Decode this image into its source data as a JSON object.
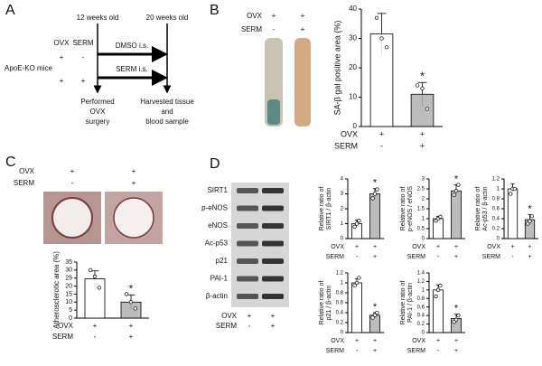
{
  "panel_a": {
    "letter": "A",
    "age_start": "12 weeks old",
    "age_end": "20 weeks old",
    "columns": [
      "OVX",
      "SERM"
    ],
    "group": "ApoE-KO mice",
    "rows": [
      [
        "+",
        "-"
      ],
      [
        "+",
        "+"
      ]
    ],
    "treatments": [
      "DMSO i.s.",
      "SERM i.s."
    ],
    "start_event": [
      "Performed",
      "OVX",
      "surgery"
    ],
    "end_event": [
      "Harvested tissue",
      "and",
      "blood sample"
    ]
  },
  "panel_b": {
    "letter": "B",
    "image_rows": [
      {
        "label": "OVX",
        "marks": [
          "+",
          "+"
        ]
      },
      {
        "label": "SERM",
        "marks": [
          "-",
          "+"
        ]
      }
    ]
  },
  "panel_c": {
    "letter": "C",
    "image_rows": [
      {
        "label": "OVX",
        "marks": [
          "+",
          "+"
        ]
      },
      {
        "label": "SERM",
        "marks": [
          "-",
          "+"
        ]
      }
    ]
  },
  "panel_d": {
    "letter": "D",
    "blot_labels": [
      "SIRT1",
      "p-eNOS",
      "eNOS",
      "Ac-p53",
      "p21",
      "PAI-1",
      "β-actin"
    ],
    "blot_rows": [
      {
        "label": "OVX",
        "marks": [
          "+",
          "+"
        ]
      },
      {
        "label": "SERM",
        "marks": [
          "-",
          "+"
        ]
      }
    ]
  },
  "chart_data": [
    {
      "type": "bar",
      "ylabel": [
        "SA-β gal positive area (%)"
      ],
      "values": [
        31.5,
        11
      ],
      "errors": [
        7,
        4
      ],
      "points": [
        [
          37,
          30,
          27
        ],
        [
          14,
          13,
          6
        ]
      ],
      "colors": [
        "#ffffff",
        "#b0b0b0"
      ],
      "significance": [
        null,
        "*"
      ],
      "ylim": [
        0,
        40
      ],
      "yticks": [
        0,
        10,
        20,
        30,
        40
      ],
      "rows": [
        {
          "label": "OVX",
          "marks": [
            "+",
            "+"
          ]
        },
        {
          "label": "SERM",
          "marks": [
            "-",
            "+"
          ]
        }
      ]
    },
    {
      "type": "bar",
      "ylabel": [
        "Atherosclerotic area (%)"
      ],
      "values": [
        24.5,
        10
      ],
      "errors": [
        5,
        4.5
      ],
      "points": [
        [
          30,
          26,
          19
        ],
        [
          15,
          10,
          6
        ]
      ],
      "colors": [
        "#ffffff",
        "#b0b0b0"
      ],
      "significance": [
        null,
        "*"
      ],
      "ylim": [
        0,
        35
      ],
      "yticks": [
        0,
        5,
        10,
        15,
        20,
        25,
        30,
        35
      ],
      "rows": [
        {
          "label": "OVX",
          "marks": [
            "+",
            "+"
          ]
        },
        {
          "label": "SERM",
          "marks": [
            "-",
            "+"
          ]
        }
      ]
    },
    {
      "type": "bar",
      "ylabel": [
        "Relative ratio of",
        "SIRT1 / β-actin"
      ],
      "values": [
        1.0,
        3.0
      ],
      "errors": [
        0.25,
        0.35
      ],
      "points": [
        [
          0.8,
          1.0,
          1.2
        ],
        [
          2.7,
          3.0,
          3.3
        ]
      ],
      "colors": [
        "#ffffff",
        "#b0b0b0"
      ],
      "significance": [
        null,
        "*"
      ],
      "ylim": [
        0,
        4
      ],
      "yticks": [
        0,
        1,
        2,
        3,
        4
      ],
      "rows": [
        {
          "label": "OVX",
          "marks": [
            "+",
            "+"
          ]
        },
        {
          "label": "SERM",
          "marks": [
            "-",
            "+"
          ]
        }
      ]
    },
    {
      "type": "bar",
      "ylabel": [
        "Relative ratio of",
        "p-eNOS / eNOS"
      ],
      "values": [
        1.0,
        2.4
      ],
      "errors": [
        0.12,
        0.3
      ],
      "points": [
        [
          0.9,
          1.0,
          1.1
        ],
        [
          2.2,
          2.4,
          2.7
        ]
      ],
      "colors": [
        "#ffffff",
        "#b0b0b0"
      ],
      "significance": [
        null,
        "*"
      ],
      "ylim": [
        0,
        3
      ],
      "yticks": [
        0,
        0.5,
        1,
        1.5,
        2,
        2.5,
        3
      ],
      "rows": [
        {
          "label": "OVX",
          "marks": [
            "+",
            "+"
          ]
        },
        {
          "label": "SERM",
          "marks": [
            "-",
            "+"
          ]
        }
      ]
    },
    {
      "type": "bar",
      "ylabel": [
        "Relative ratio of",
        "Ac-p53 / β-actin"
      ],
      "values": [
        1.0,
        0.38
      ],
      "errors": [
        0.1,
        0.1
      ],
      "points": [
        [
          0.9,
          1.0,
          1.0
        ],
        [
          0.3,
          0.35,
          0.45
        ]
      ],
      "colors": [
        "#ffffff",
        "#b0b0b0"
      ],
      "significance": [
        null,
        "*"
      ],
      "ylim": [
        0,
        1.2
      ],
      "yticks": [
        0,
        0.2,
        0.4,
        0.6,
        0.8,
        1,
        1.2
      ],
      "rows": [
        {
          "label": "OVX",
          "marks": [
            "+",
            "+"
          ]
        },
        {
          "label": "SERM",
          "marks": [
            "-",
            "+"
          ]
        }
      ]
    },
    {
      "type": "bar",
      "ylabel": [
        "Relative ratio of",
        "p21 / β-actin"
      ],
      "values": [
        1.0,
        0.35
      ],
      "errors": [
        0.08,
        0.05
      ],
      "points": [
        [
          0.95,
          1.0,
          1.1
        ],
        [
          0.3,
          0.35,
          0.4
        ]
      ],
      "colors": [
        "#ffffff",
        "#b0b0b0"
      ],
      "significance": [
        null,
        "*"
      ],
      "ylim": [
        0,
        1.2
      ],
      "yticks": [
        0,
        0.2,
        0.4,
        0.6,
        0.8,
        1,
        1.2
      ],
      "rows": [
        {
          "label": "OVX",
          "marks": [
            "+",
            "+"
          ]
        },
        {
          "label": "SERM",
          "marks": [
            "-",
            "+"
          ]
        }
      ]
    },
    {
      "type": "bar",
      "ylabel": [
        "Relative ratio of",
        "PAI-1 / β-actin"
      ],
      "values": [
        1.0,
        0.33
      ],
      "errors": [
        0.12,
        0.1
      ],
      "points": [
        [
          0.85,
          1.0,
          1.1
        ],
        [
          0.25,
          0.3,
          0.4
        ]
      ],
      "colors": [
        "#ffffff",
        "#b0b0b0"
      ],
      "significance": [
        null,
        "*"
      ],
      "ylim": [
        0,
        1.4
      ],
      "yticks": [
        0,
        0.2,
        0.4,
        0.6,
        0.8,
        1,
        1.2,
        1.4
      ],
      "rows": [
        {
          "label": "OVX",
          "marks": [
            "+",
            "+"
          ]
        },
        {
          "label": "SERM",
          "marks": [
            "-",
            "+"
          ]
        }
      ]
    }
  ]
}
